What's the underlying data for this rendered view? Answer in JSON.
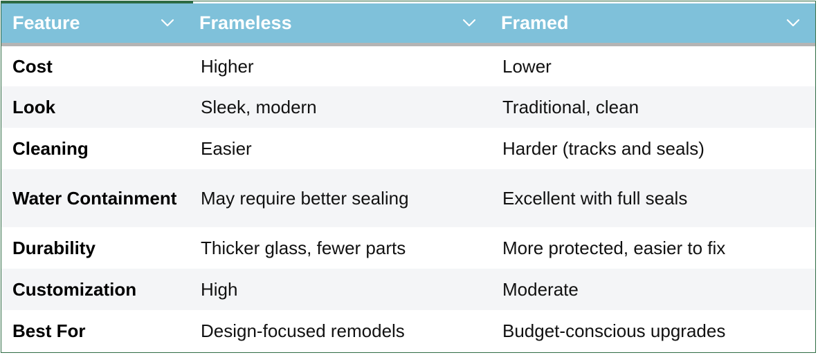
{
  "table": {
    "headers": [
      {
        "label": "Feature",
        "icon": "chevron-down-icon"
      },
      {
        "label": "Frameless",
        "icon": "chevron-down-icon"
      },
      {
        "label": "Framed",
        "icon": "chevron-down-icon"
      }
    ],
    "rows": [
      {
        "feature": "Cost",
        "frameless": "Higher",
        "framed": "Lower"
      },
      {
        "feature": "Look",
        "frameless": "Sleek, modern",
        "framed": "Traditional, clean"
      },
      {
        "feature": "Cleaning",
        "frameless": "Easier",
        "framed": "Harder (tracks and seals)"
      },
      {
        "feature": "Water Containment",
        "frameless": "May require better sealing",
        "framed": "Excellent with full seals"
      },
      {
        "feature": "Durability",
        "frameless": "Thicker glass, fewer parts",
        "framed": "More protected, easier to fix"
      },
      {
        "feature": "Customization",
        "frameless": "High",
        "framed": "Moderate"
      },
      {
        "feature": "Best For",
        "frameless": "Design-focused remodels",
        "framed": "Budget-conscious upgrades"
      }
    ]
  },
  "colors": {
    "header_bg": "#7fc1da",
    "header_text": "#ffffff",
    "border": "#2e6b43",
    "row_alt": "#f4f5f7"
  }
}
